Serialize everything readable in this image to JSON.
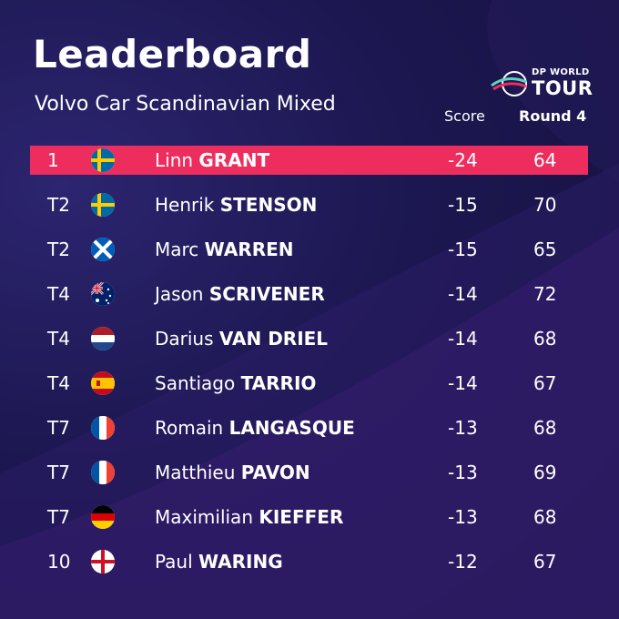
{
  "header": {
    "title": "Leaderboard",
    "subtitle": "Volvo Car Scandinavian Mixed"
  },
  "logo": {
    "top": "DP WORLD",
    "main": "TOUR"
  },
  "columns": {
    "score": "Score",
    "round": "Round 4"
  },
  "colors": {
    "background": "#1c1750",
    "highlight": "#ee2d5f"
  },
  "rows": [
    {
      "pos": "1",
      "flag": "sweden-flag-icon",
      "first": "Linn",
      "last": "GRANT",
      "score": "-24",
      "round": "64"
    },
    {
      "pos": "T2",
      "flag": "sweden-flag-icon",
      "first": "Henrik",
      "last": "STENSON",
      "score": "-15",
      "round": "70"
    },
    {
      "pos": "T2",
      "flag": "scotland-flag-icon",
      "first": "Marc",
      "last": "WARREN",
      "score": "-15",
      "round": "65"
    },
    {
      "pos": "T4",
      "flag": "australia-flag-icon",
      "first": "Jason",
      "last": "SCRIVENER",
      "score": "-14",
      "round": "72"
    },
    {
      "pos": "T4",
      "flag": "netherlands-flag-icon",
      "first": "Darius",
      "last": "VAN DRIEL",
      "score": "-14",
      "round": "68"
    },
    {
      "pos": "T4",
      "flag": "spain-flag-icon",
      "first": "Santiago",
      "last": "TARRIO",
      "score": "-14",
      "round": "67"
    },
    {
      "pos": "T7",
      "flag": "france-flag-icon",
      "first": "Romain",
      "last": "LANGASQUE",
      "score": "-13",
      "round": "68"
    },
    {
      "pos": "T7",
      "flag": "france-flag-icon",
      "first": "Matthieu",
      "last": "PAVON",
      "score": "-13",
      "round": "69"
    },
    {
      "pos": "T7",
      "flag": "germany-flag-icon",
      "first": "Maximilian",
      "last": "KIEFFER",
      "score": "-13",
      "round": "68"
    },
    {
      "pos": "10",
      "flag": "england-flag-icon",
      "first": "Paul",
      "last": "WARING",
      "score": "-12",
      "round": "67"
    }
  ]
}
